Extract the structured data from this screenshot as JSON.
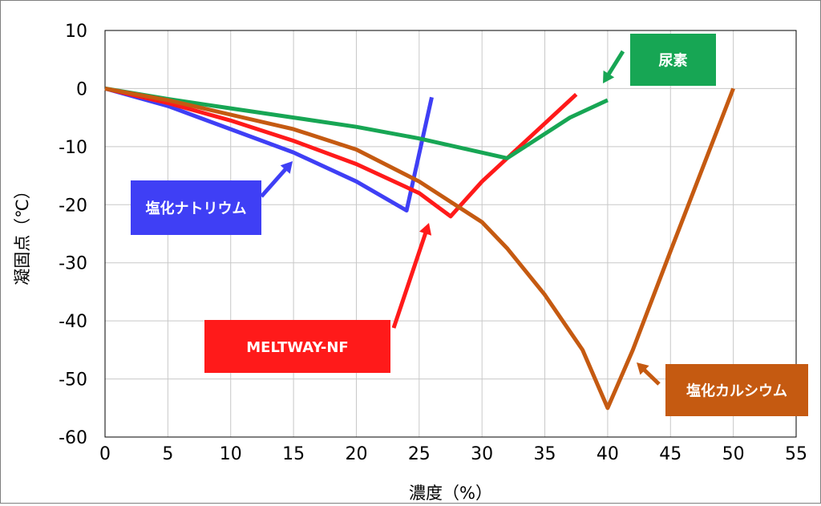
{
  "chart_data": {
    "type": "line",
    "xlabel": "濃度（%）",
    "ylabel": "凝固点（℃）",
    "xlim": [
      0,
      55
    ],
    "ylim": [
      -60,
      10
    ],
    "xticks": [
      0,
      5,
      10,
      15,
      20,
      25,
      30,
      35,
      40,
      45,
      50,
      55
    ],
    "yticks": [
      10,
      0,
      -10,
      -20,
      -30,
      -40,
      -50,
      -60
    ],
    "grid": true,
    "series": [
      {
        "name": "塩化ナトリウム",
        "color": "#3f3ff5",
        "label_bg": "#3f3ff5",
        "points": [
          [
            0,
            0
          ],
          [
            5,
            -3
          ],
          [
            10,
            -7
          ],
          [
            15,
            -11
          ],
          [
            20,
            -16
          ],
          [
            24,
            -21
          ],
          [
            26,
            -1.5
          ]
        ]
      },
      {
        "name": "MELTWAY-NF",
        "color": "#ff1a1a",
        "label_bg": "#ff1a1a",
        "points": [
          [
            0,
            0
          ],
          [
            5,
            -2.5
          ],
          [
            10,
            -5.5
          ],
          [
            15,
            -9
          ],
          [
            20,
            -13
          ],
          [
            25,
            -18
          ],
          [
            27.5,
            -22
          ],
          [
            30,
            -16
          ],
          [
            35,
            -6
          ],
          [
            37.5,
            -1
          ]
        ]
      },
      {
        "name": "尿素",
        "color": "#17a654",
        "label_bg": "#17a654",
        "points": [
          [
            0,
            0
          ],
          [
            5,
            -1.8
          ],
          [
            10,
            -3.4
          ],
          [
            15,
            -5
          ],
          [
            20,
            -6.6
          ],
          [
            25,
            -8.6
          ],
          [
            32,
            -12
          ],
          [
            37,
            -5
          ],
          [
            40,
            -2
          ]
        ]
      },
      {
        "name": "塩化カルシウム",
        "color": "#c55a11",
        "label_bg": "#c55a11",
        "points": [
          [
            0,
            0
          ],
          [
            5,
            -2
          ],
          [
            10,
            -4.5
          ],
          [
            15,
            -7
          ],
          [
            20,
            -10.5
          ],
          [
            25,
            -16
          ],
          [
            30,
            -23
          ],
          [
            32,
            -27.5
          ],
          [
            35,
            -35.5
          ],
          [
            38,
            -45
          ],
          [
            40,
            -55
          ],
          [
            42,
            -45
          ],
          [
            45,
            -28
          ],
          [
            50,
            0
          ]
        ]
      }
    ]
  }
}
